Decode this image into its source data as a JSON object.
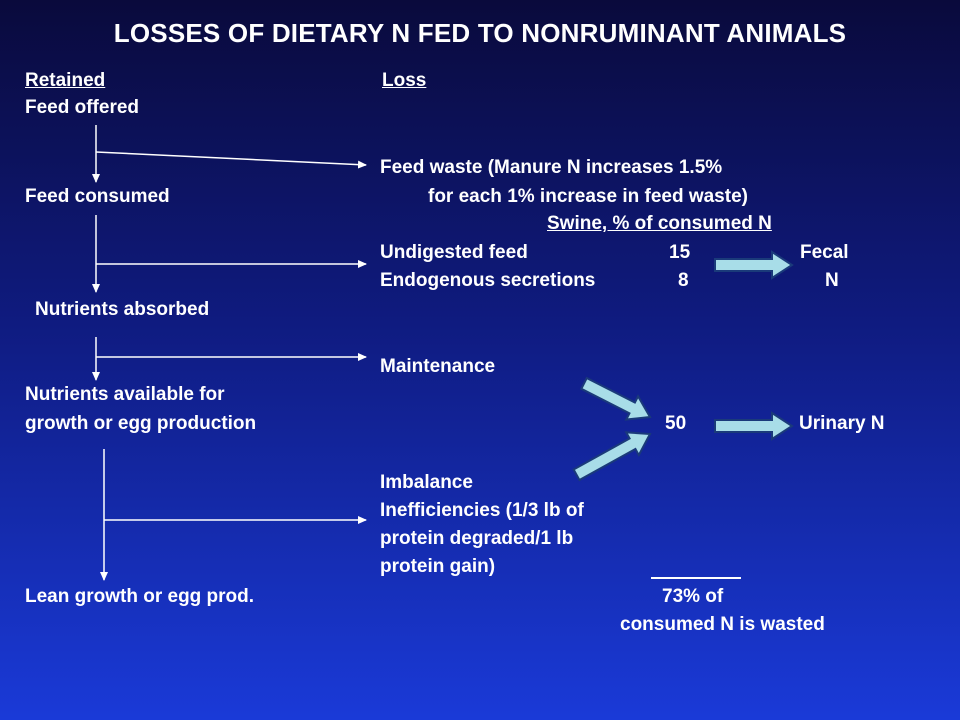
{
  "title": "LOSSES OF DIETARY N FED TO NONRUMINANT ANIMALS",
  "headers": {
    "retained": "Retained",
    "loss": "Loss"
  },
  "retained_steps": [
    "Feed offered",
    "Feed consumed",
    "Nutrients absorbed",
    "Nutrients available for",
    "growth or egg production",
    "Lean growth or egg prod."
  ],
  "losses": {
    "feed_waste_1": "Feed waste (Manure N increases 1.5%",
    "feed_waste_2": "for each 1% increase in feed waste)",
    "swine_header": "Swine, % of consumed N",
    "undigested_label": "Undigested feed",
    "undigested_value": "15",
    "endogenous_label": "Endogenous secretions",
    "endogenous_value": "8",
    "fecal_1": "Fecal",
    "fecal_2": "N",
    "maintenance": "Maintenance",
    "urinary_value": "50",
    "urinary_label": "Urinary N",
    "imbalance": "Imbalance",
    "inefficiency_1": "Inefficiencies (1/3 lb of",
    "inefficiency_2": "protein degraded/1 lb",
    "inefficiency_3": "protein gain)",
    "total_1": "73% of",
    "total_2": "consumed N is wasted"
  },
  "colors": {
    "flow_line": "#ffffff",
    "callout_arrow_fill": "#a8dde8",
    "callout_arrow_stroke": "#1a3a7a"
  }
}
